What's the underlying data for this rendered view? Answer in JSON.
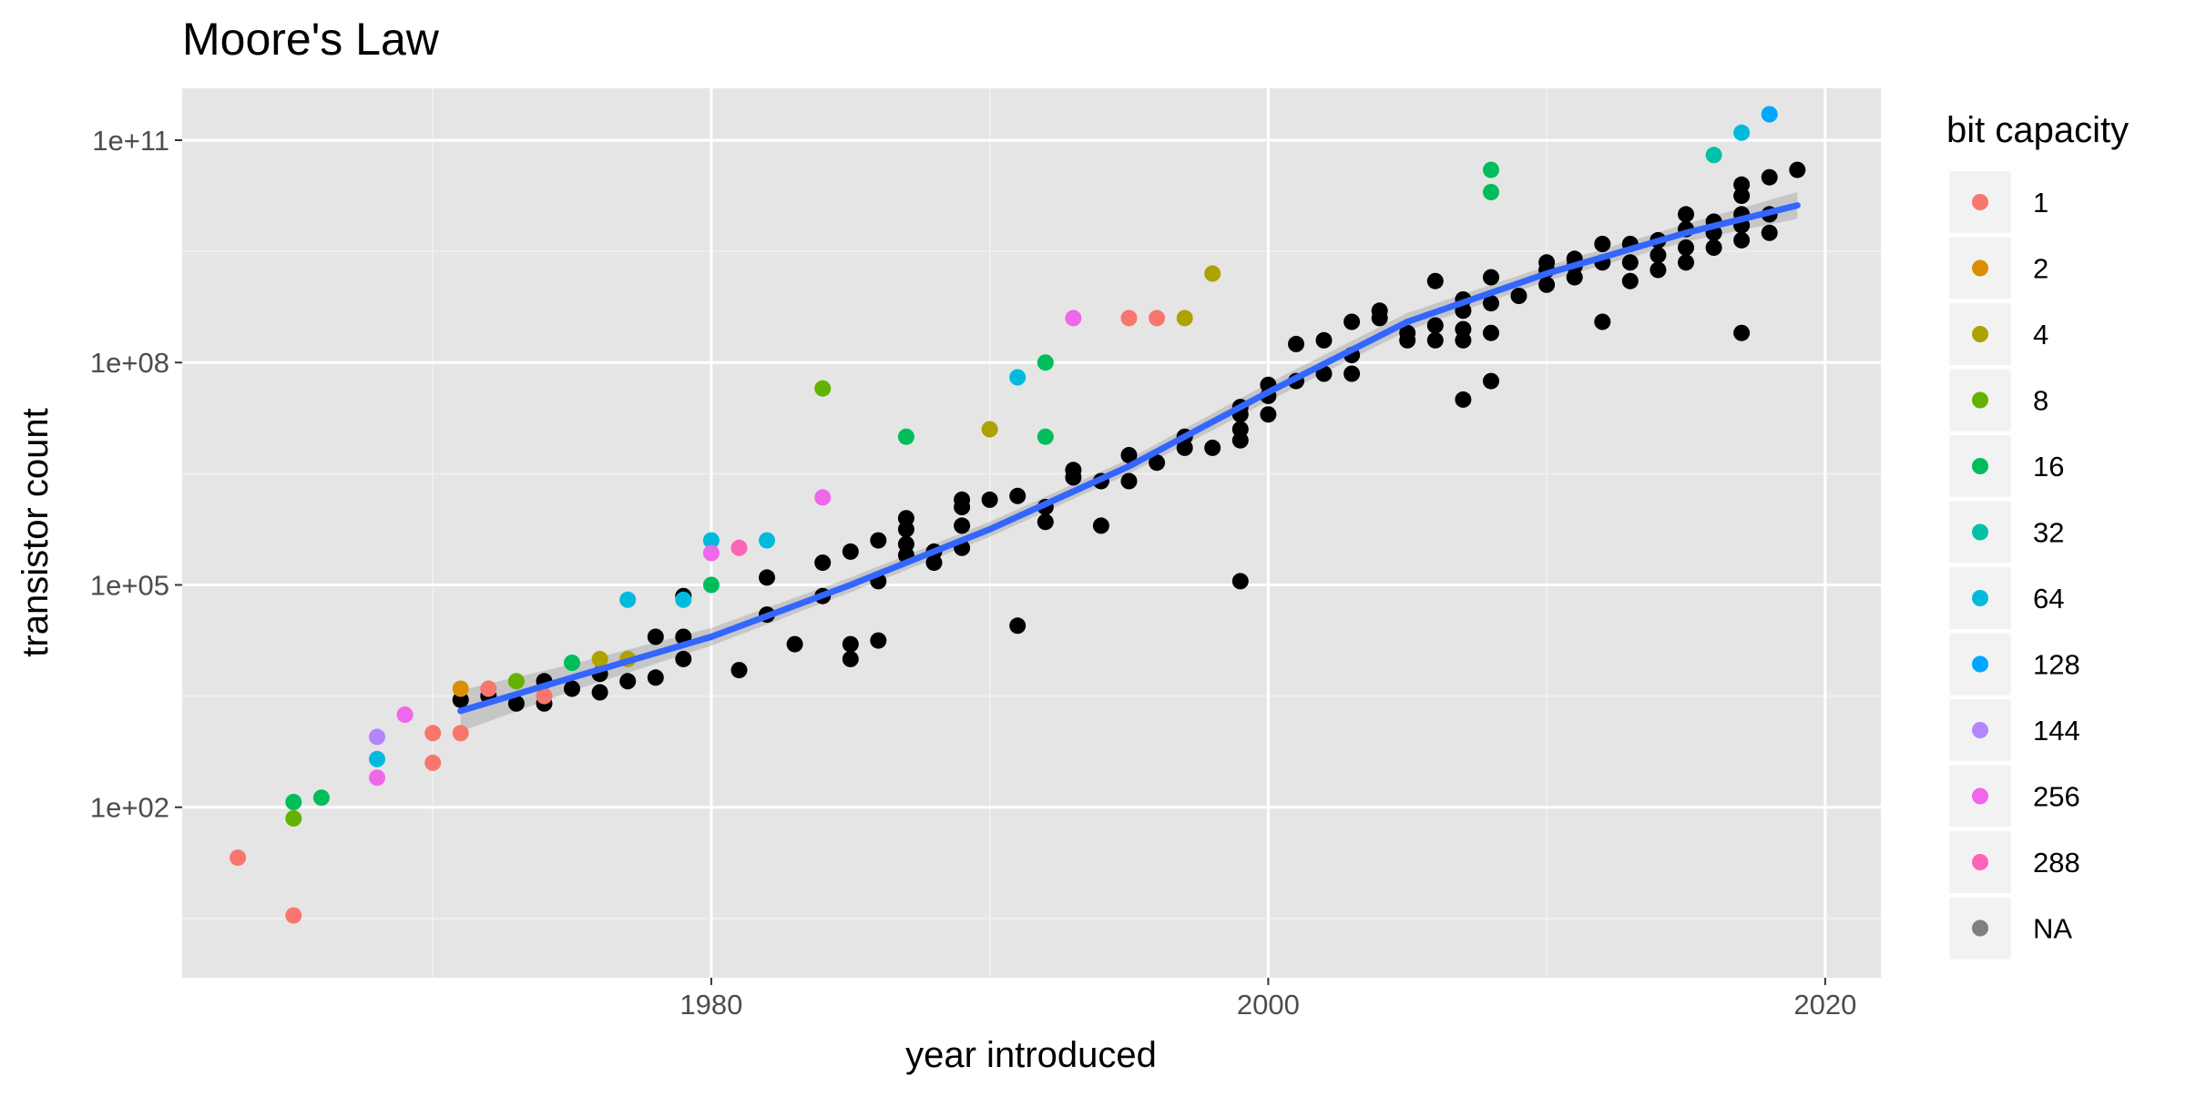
{
  "chart_data": {
    "type": "scatter",
    "title": "Moore's Law",
    "xlabel": "year introduced",
    "ylabel": "transistor count",
    "xlim": [
      1961,
      2022
    ],
    "ylim_log10": [
      -0.3,
      11.7
    ],
    "y_scale": "log10",
    "x_ticks": [
      1980,
      2000,
      2020
    ],
    "y_ticks": [
      {
        "value": 100,
        "label": "1e+02"
      },
      {
        "value": 100000,
        "label": "1e+05"
      },
      {
        "value": 100000000,
        "label": "1e+08"
      },
      {
        "value": 100000000000,
        "label": "1e+11"
      }
    ],
    "grid": true,
    "background": "#e5e5e5",
    "legend": {
      "title": "bit capacity",
      "position": "right",
      "entries": [
        {
          "label": "1",
          "color": "#F8766D"
        },
        {
          "label": "2",
          "color": "#DB8E00"
        },
        {
          "label": "4",
          "color": "#AEA200"
        },
        {
          "label": "8",
          "color": "#64B200"
        },
        {
          "label": "16",
          "color": "#00BD5C"
        },
        {
          "label": "32",
          "color": "#00C1A7"
        },
        {
          "label": "64",
          "color": "#00BADE"
        },
        {
          "label": "128",
          "color": "#00A6FF"
        },
        {
          "label": "144",
          "color": "#B385FF"
        },
        {
          "label": "256",
          "color": "#EF67EB"
        },
        {
          "label": "288",
          "color": "#FF63B6"
        },
        {
          "label": "NA",
          "color": "#7F7F7F"
        }
      ]
    },
    "points_color_key": "bit capacity",
    "points": [
      [
        1963,
        1.32,
        "1"
      ],
      [
        1965,
        0.54,
        "1"
      ],
      [
        1970,
        3.0,
        "1"
      ],
      [
        1970,
        2.6,
        "1"
      ],
      [
        1971,
        3.0,
        "1"
      ],
      [
        1972,
        3.6,
        "1"
      ],
      [
        1974,
        3.5,
        "1"
      ],
      [
        1995,
        8.6,
        "1"
      ],
      [
        1996,
        8.6,
        "1"
      ],
      [
        1971,
        3.6,
        "2"
      ],
      [
        1976,
        4.0,
        "4"
      ],
      [
        1977,
        4.0,
        "4"
      ],
      [
        1990,
        7.1,
        "4"
      ],
      [
        1997,
        8.6,
        "4"
      ],
      [
        1998,
        9.2,
        "4"
      ],
      [
        1965,
        1.85,
        "8"
      ],
      [
        1973,
        3.7,
        "8"
      ],
      [
        1984,
        7.65,
        "8"
      ],
      [
        1965,
        2.07,
        "16"
      ],
      [
        1966,
        2.13,
        "16"
      ],
      [
        1975,
        3.95,
        "16"
      ],
      [
        1980,
        5.0,
        "16"
      ],
      [
        1987,
        7.0,
        "16"
      ],
      [
        1992,
        7.0,
        "16"
      ],
      [
        1992,
        8.0,
        "16"
      ],
      [
        2008,
        10.3,
        "16"
      ],
      [
        2008,
        10.6,
        "16"
      ],
      [
        2016,
        10.8,
        "32"
      ],
      [
        1968,
        2.65,
        "64"
      ],
      [
        1977,
        4.8,
        "64"
      ],
      [
        1979,
        4.8,
        "64"
      ],
      [
        1980,
        5.6,
        "64"
      ],
      [
        1982,
        5.6,
        "64"
      ],
      [
        1991,
        7.8,
        "64"
      ],
      [
        2017,
        11.1,
        "64"
      ],
      [
        2018,
        11.35,
        "128"
      ],
      [
        1968,
        2.95,
        "144"
      ],
      [
        1968,
        2.4,
        "256"
      ],
      [
        1969,
        3.25,
        "256"
      ],
      [
        1980,
        5.43,
        "256"
      ],
      [
        1984,
        6.18,
        "256"
      ],
      [
        1993,
        8.6,
        "256"
      ],
      [
        1981,
        5.5,
        "288"
      ],
      [
        1971,
        3.45,
        "NA"
      ],
      [
        1972,
        3.5,
        "NA"
      ],
      [
        1973,
        3.4,
        "NA"
      ],
      [
        1974,
        3.4,
        "NA"
      ],
      [
        1974,
        3.7,
        "NA"
      ],
      [
        1975,
        3.6,
        "NA"
      ],
      [
        1976,
        3.55,
        "NA"
      ],
      [
        1976,
        3.8,
        "NA"
      ],
      [
        1977,
        3.7,
        "NA"
      ],
      [
        1978,
        3.75,
        "NA"
      ],
      [
        1978,
        4.3,
        "NA"
      ],
      [
        1979,
        4.0,
        "NA"
      ],
      [
        1979,
        4.3,
        "NA"
      ],
      [
        1979,
        4.85,
        "NA"
      ],
      [
        1981,
        3.85,
        "NA"
      ],
      [
        1982,
        4.6,
        "NA"
      ],
      [
        1982,
        5.1,
        "NA"
      ],
      [
        1983,
        4.2,
        "NA"
      ],
      [
        1984,
        4.85,
        "NA"
      ],
      [
        1984,
        5.3,
        "NA"
      ],
      [
        1985,
        4.0,
        "NA"
      ],
      [
        1985,
        4.2,
        "NA"
      ],
      [
        1985,
        5.45,
        "NA"
      ],
      [
        1986,
        4.25,
        "NA"
      ],
      [
        1986,
        5.05,
        "NA"
      ],
      [
        1986,
        5.6,
        "NA"
      ],
      [
        1987,
        5.4,
        "NA"
      ],
      [
        1987,
        5.55,
        "NA"
      ],
      [
        1987,
        5.75,
        "NA"
      ],
      [
        1987,
        5.9,
        "NA"
      ],
      [
        1988,
        5.3,
        "NA"
      ],
      [
        1988,
        5.45,
        "NA"
      ],
      [
        1989,
        5.5,
        "NA"
      ],
      [
        1989,
        5.8,
        "NA"
      ],
      [
        1989,
        6.05,
        "NA"
      ],
      [
        1989,
        6.15,
        "NA"
      ],
      [
        1990,
        6.15,
        "NA"
      ],
      [
        1991,
        4.45,
        "NA"
      ],
      [
        1991,
        6.2,
        "NA"
      ],
      [
        1992,
        5.85,
        "NA"
      ],
      [
        1992,
        6.05,
        "NA"
      ],
      [
        1993,
        6.45,
        "NA"
      ],
      [
        1993,
        6.55,
        "NA"
      ],
      [
        1994,
        5.8,
        "NA"
      ],
      [
        1994,
        6.4,
        "NA"
      ],
      [
        1995,
        6.4,
        "NA"
      ],
      [
        1995,
        6.75,
        "NA"
      ],
      [
        1996,
        6.65,
        "NA"
      ],
      [
        1997,
        6.85,
        "NA"
      ],
      [
        1997,
        7.0,
        "NA"
      ],
      [
        1998,
        6.85,
        "NA"
      ],
      [
        1999,
        5.05,
        "NA"
      ],
      [
        1999,
        6.95,
        "NA"
      ],
      [
        1999,
        7.1,
        "NA"
      ],
      [
        1999,
        7.3,
        "NA"
      ],
      [
        1999,
        7.4,
        "NA"
      ],
      [
        2000,
        7.3,
        "NA"
      ],
      [
        2000,
        7.55,
        "NA"
      ],
      [
        2000,
        7.7,
        "NA"
      ],
      [
        2001,
        7.75,
        "NA"
      ],
      [
        2001,
        8.25,
        "NA"
      ],
      [
        2002,
        7.85,
        "NA"
      ],
      [
        2002,
        8.3,
        "NA"
      ],
      [
        2003,
        7.85,
        "NA"
      ],
      [
        2003,
        8.1,
        "NA"
      ],
      [
        2003,
        8.55,
        "NA"
      ],
      [
        2004,
        8.6,
        "NA"
      ],
      [
        2004,
        8.7,
        "NA"
      ],
      [
        2005,
        8.3,
        "NA"
      ],
      [
        2005,
        8.4,
        "NA"
      ],
      [
        2006,
        8.3,
        "NA"
      ],
      [
        2006,
        8.5,
        "NA"
      ],
      [
        2006,
        9.1,
        "NA"
      ],
      [
        2007,
        7.5,
        "NA"
      ],
      [
        2007,
        8.3,
        "NA"
      ],
      [
        2007,
        8.45,
        "NA"
      ],
      [
        2007,
        8.7,
        "NA"
      ],
      [
        2007,
        8.85,
        "NA"
      ],
      [
        2008,
        7.75,
        "NA"
      ],
      [
        2008,
        8.4,
        "NA"
      ],
      [
        2008,
        8.8,
        "NA"
      ],
      [
        2008,
        9.15,
        "NA"
      ],
      [
        2009,
        8.9,
        "NA"
      ],
      [
        2010,
        9.05,
        "NA"
      ],
      [
        2010,
        9.25,
        "NA"
      ],
      [
        2010,
        9.35,
        "NA"
      ],
      [
        2011,
        9.15,
        "NA"
      ],
      [
        2011,
        9.3,
        "NA"
      ],
      [
        2011,
        9.4,
        "NA"
      ],
      [
        2012,
        8.55,
        "NA"
      ],
      [
        2012,
        9.35,
        "NA"
      ],
      [
        2012,
        9.6,
        "NA"
      ],
      [
        2013,
        9.1,
        "NA"
      ],
      [
        2013,
        9.35,
        "NA"
      ],
      [
        2013,
        9.6,
        "NA"
      ],
      [
        2014,
        9.25,
        "NA"
      ],
      [
        2014,
        9.45,
        "NA"
      ],
      [
        2014,
        9.65,
        "NA"
      ],
      [
        2015,
        9.35,
        "NA"
      ],
      [
        2015,
        9.55,
        "NA"
      ],
      [
        2015,
        9.8,
        "NA"
      ],
      [
        2015,
        10.0,
        "NA"
      ],
      [
        2016,
        9.55,
        "NA"
      ],
      [
        2016,
        9.75,
        "NA"
      ],
      [
        2016,
        9.9,
        "NA"
      ],
      [
        2017,
        8.4,
        "NA"
      ],
      [
        2017,
        9.65,
        "NA"
      ],
      [
        2017,
        9.85,
        "NA"
      ],
      [
        2017,
        10.0,
        "NA"
      ],
      [
        2017,
        10.25,
        "NA"
      ],
      [
        2017,
        10.4,
        "NA"
      ],
      [
        2018,
        9.75,
        "NA"
      ],
      [
        2018,
        10.0,
        "NA"
      ],
      [
        2018,
        10.5,
        "NA"
      ],
      [
        2019,
        10.6,
        "NA"
      ]
    ],
    "trend": {
      "color": "#3366FF",
      "band_color": "#999999",
      "x": [
        1971,
        1975,
        1980,
        1985,
        1990,
        1995,
        2000,
        2005,
        2010,
        2015,
        2019
      ],
      "y_log10": [
        3.3,
        3.75,
        4.3,
        5.0,
        5.75,
        6.6,
        7.6,
        8.55,
        9.2,
        9.75,
        10.12
      ],
      "band_halfwidth_log10": [
        0.28,
        0.18,
        0.12,
        0.1,
        0.1,
        0.1,
        0.12,
        0.12,
        0.1,
        0.12,
        0.18
      ]
    }
  }
}
